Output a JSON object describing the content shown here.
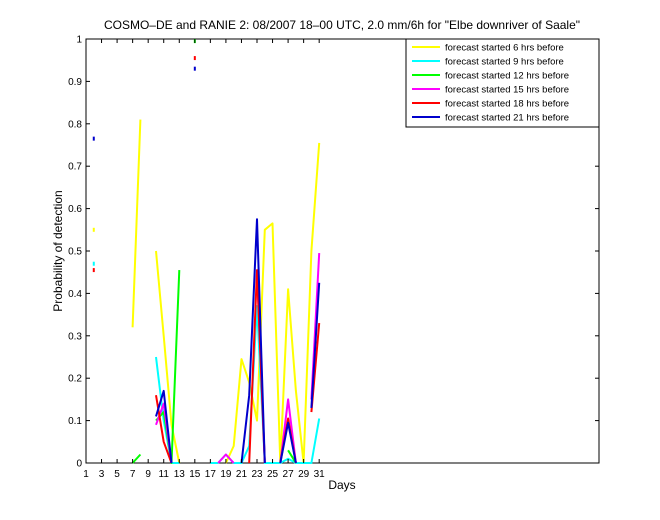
{
  "chart_data": {
    "type": "line",
    "title": "COSMO–DE and RANIE 2: 08/2007 18–00 UTC, 2.0 mm/6h for \"Elbe downriver of Saale\"",
    "xlabel": "Days",
    "ylabel": "Probability of detection",
    "xlim": [
      1,
      67
    ],
    "ylim": [
      0,
      1
    ],
    "xticks": [
      1,
      3,
      5,
      7,
      9,
      11,
      13,
      15,
      17,
      19,
      21,
      23,
      25,
      27,
      29,
      31
    ],
    "yticks": [
      0,
      0.1,
      0.2,
      0.3,
      0.4,
      0.5,
      0.6,
      0.7,
      0.8,
      0.9,
      1
    ],
    "legend_position": "top-right",
    "grid": false,
    "series": [
      {
        "name": "forecast started 6 hrs before",
        "color": "#ffff00",
        "points": [
          [
            2,
            0.55
          ],
          [
            7,
            0.32
          ],
          [
            8,
            0.81
          ],
          [
            10,
            0.5
          ],
          [
            11,
            0.3
          ],
          [
            12,
            0.09
          ],
          [
            13,
            0
          ],
          [
            19,
            0
          ],
          [
            20,
            0.04
          ],
          [
            21,
            0.245
          ],
          [
            22,
            0.19
          ],
          [
            23,
            0.1
          ],
          [
            24,
            0.55
          ],
          [
            25,
            0.565
          ],
          [
            26,
            0
          ],
          [
            27,
            0.41
          ],
          [
            28,
            0.17
          ],
          [
            29,
            0
          ],
          [
            30,
            0.5
          ],
          [
            31,
            0.755
          ]
        ]
      },
      {
        "name": "forecast started 9 hrs before",
        "color": "#00ffff",
        "points": [
          [
            2,
            0.47
          ],
          [
            10,
            0.25
          ],
          [
            11,
            0.1
          ],
          [
            12,
            0
          ],
          [
            13,
            0
          ],
          [
            17,
            0
          ],
          [
            18,
            0
          ],
          [
            19,
            0.02
          ],
          [
            20,
            0
          ],
          [
            21,
            0
          ],
          [
            22,
            0.04
          ],
          [
            23,
            0.37
          ],
          [
            24,
            0
          ],
          [
            25,
            0
          ],
          [
            26,
            0
          ],
          [
            27,
            0.01
          ],
          [
            28,
            0
          ],
          [
            29,
            0
          ],
          [
            30,
            0
          ],
          [
            31,
            0.105
          ]
        ]
      },
      {
        "name": "forecast started 12 hrs before",
        "color": "#00ff00",
        "points": [
          [
            7,
            0
          ],
          [
            8,
            0.02
          ],
          [
            10,
            0.1
          ],
          [
            11,
            0.12
          ],
          [
            12,
            0
          ],
          [
            13,
            0.455
          ],
          [
            15,
            0.995
          ],
          [
            27,
            0.03
          ],
          [
            28,
            0
          ]
        ]
      },
      {
        "name": "forecast started 15 hrs before",
        "color": "#ff00ff",
        "points": [
          [
            10,
            0.09
          ],
          [
            11,
            0.14
          ],
          [
            12,
            0
          ],
          [
            18,
            0
          ],
          [
            19,
            0.02
          ],
          [
            20,
            0
          ],
          [
            23,
            0.45
          ],
          [
            24,
            0
          ],
          [
            26,
            0
          ],
          [
            27,
            0.15
          ],
          [
            28,
            0
          ],
          [
            30,
            0.15
          ],
          [
            31,
            0.495
          ]
        ]
      },
      {
        "name": "forecast started 18 hrs before",
        "color": "#ff0000",
        "points": [
          [
            2,
            0.455
          ],
          [
            10,
            0.16
          ],
          [
            11,
            0.05
          ],
          [
            12,
            0
          ],
          [
            15,
            0.955
          ],
          [
            22,
            0
          ],
          [
            23,
            0.455
          ],
          [
            24,
            0
          ],
          [
            26,
            0
          ],
          [
            27,
            0.105
          ],
          [
            28,
            0
          ],
          [
            30,
            0.12
          ],
          [
            31,
            0.33
          ]
        ]
      },
      {
        "name": "forecast started 21 hrs before",
        "color": "#0000cc",
        "points": [
          [
            2,
            0.765
          ],
          [
            10,
            0.11
          ],
          [
            11,
            0.17
          ],
          [
            12,
            0
          ],
          [
            15,
            0.93
          ],
          [
            21,
            0
          ],
          [
            22,
            0.16
          ],
          [
            23,
            0.575
          ],
          [
            24,
            0
          ],
          [
            26,
            0
          ],
          [
            27,
            0.095
          ],
          [
            28,
            0
          ],
          [
            30,
            0.13
          ],
          [
            31,
            0.425
          ]
        ]
      }
    ]
  }
}
